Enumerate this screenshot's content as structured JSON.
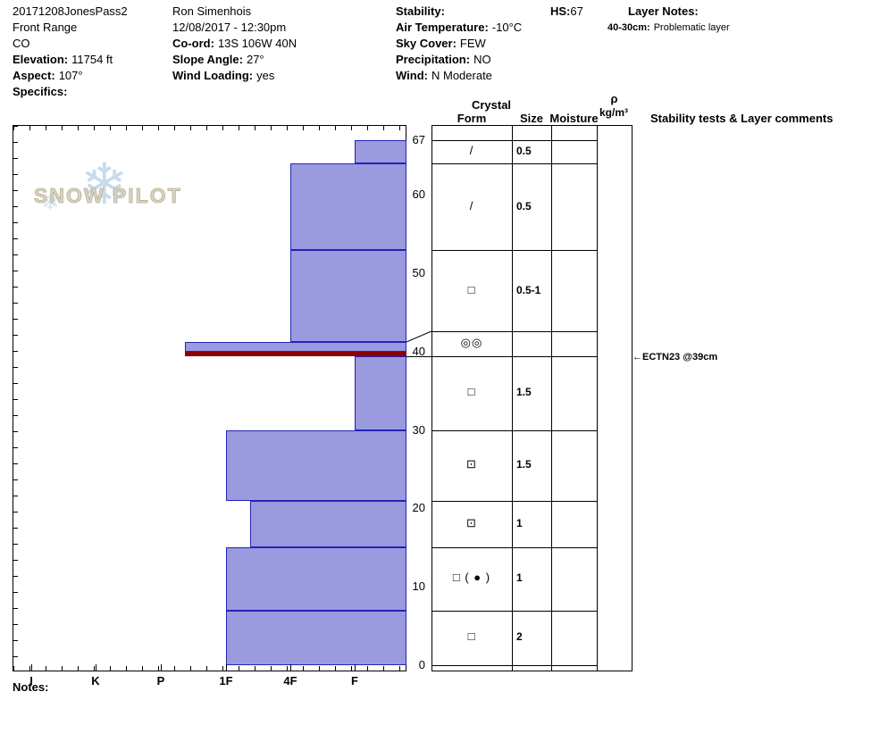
{
  "header": {
    "site": {
      "name": "20171208JonesPass2",
      "region": "Front Range",
      "state": "CO",
      "elevation_label": "Elevation:",
      "elevation_value": "11754 ft",
      "aspect_label": "Aspect:",
      "aspect_value": "107°",
      "specifics_label": "Specifics:"
    },
    "observer": {
      "name": "Ron Simenhois",
      "datetime": "12/08/2017 - 12:30pm",
      "coord_label": "Co-ord:",
      "coord_value": "13S 106W 40N",
      "slope_angle_label": "Slope Angle:",
      "slope_angle_value": "27°",
      "wind_loading_label": "Wind Loading:",
      "wind_loading_value": "yes"
    },
    "conditions": {
      "stability_label": "Stability:",
      "air_temp_label": "Air Temperature:",
      "air_temp_value": "-10°C",
      "sky_cover_label": "Sky Cover:",
      "sky_cover_value": "FEW",
      "precip_label": "Precipitation:",
      "precip_value": "NO",
      "wind_label": "Wind:",
      "wind_value": "N Moderate"
    },
    "hs_label": "HS:",
    "hs_value": "67",
    "layer_notes_label": "Layer Notes:",
    "layer_note_depth": "40-30cm:",
    "layer_note_text": "Problematic layer"
  },
  "table_headers": {
    "crystal": "Crystal",
    "form": "Form",
    "size": "Size",
    "moisture": "Moisture",
    "density_symbol": "ρ",
    "density_units": "kg/m³",
    "stability": "Stability tests & Layer comments"
  },
  "axis": {
    "hardness_labels": [
      "I",
      "K",
      "P",
      "1F",
      "4F",
      "F"
    ],
    "depth_labels": [
      67,
      60,
      50,
      40,
      30,
      20,
      10,
      0
    ]
  },
  "logo": {
    "text": "SNOW PILOT"
  },
  "notes_label": "Notes:",
  "chart_data": {
    "type": "bar",
    "subtype": "snow-hardness-profile",
    "depth_range_cm": [
      0,
      67
    ],
    "hs_cm": 67,
    "hardness_scale": [
      "I",
      "K",
      "P",
      "1F",
      "4F",
      "F"
    ],
    "colors": {
      "bar_fill": "#9a9ade",
      "bar_border": "#2323b8",
      "weak_fill": "#8b0000"
    },
    "layers": [
      {
        "top_cm": 67,
        "bottom_cm": 64,
        "hardness": "F"
      },
      {
        "top_cm": 64,
        "bottom_cm": 53,
        "hardness": "4F"
      },
      {
        "top_cm": 53,
        "bottom_cm": 41.2,
        "hardness": "4F"
      },
      {
        "top_cm": 41.2,
        "bottom_cm": 40,
        "hardness": "P+"
      },
      {
        "top_cm": 40,
        "bottom_cm": 39.4,
        "hardness": "P+",
        "weak": true
      },
      {
        "top_cm": 39.4,
        "bottom_cm": 30,
        "hardness": "F"
      },
      {
        "top_cm": 30,
        "bottom_cm": 21,
        "hardness": "1F"
      },
      {
        "top_cm": 21,
        "bottom_cm": 15,
        "hardness": "1F+"
      },
      {
        "top_cm": 15,
        "bottom_cm": 7,
        "hardness": "1F"
      },
      {
        "top_cm": 7,
        "bottom_cm": 0,
        "hardness": "1F"
      }
    ],
    "table_rows": [
      {
        "top_cm": 67,
        "bottom_cm": 64,
        "form": "/",
        "size": "0.5"
      },
      {
        "top_cm": 64,
        "bottom_cm": 53,
        "form": "/",
        "size": "0.5"
      },
      {
        "top_cm": 53,
        "bottom_cm": 42.6,
        "form": "□",
        "size": "0.5-1"
      },
      {
        "top_cm": 42.6,
        "bottom_cm": 39.4,
        "form": "◎◎",
        "size": ""
      },
      {
        "top_cm": 39.4,
        "bottom_cm": 30,
        "form": "□",
        "size": "1.5"
      },
      {
        "top_cm": 30,
        "bottom_cm": 21,
        "form": "⊡",
        "size": "1.5"
      },
      {
        "top_cm": 21,
        "bottom_cm": 15,
        "form": "⊡",
        "size": "1"
      },
      {
        "top_cm": 15,
        "bottom_cm": 7,
        "form": "□ ( ● )",
        "size": "1"
      },
      {
        "top_cm": 7,
        "bottom_cm": 0,
        "form": "□",
        "size": "2"
      }
    ],
    "annotations": [
      {
        "label": "ECTN23 @39cm",
        "depth_cm": 39
      }
    ]
  }
}
